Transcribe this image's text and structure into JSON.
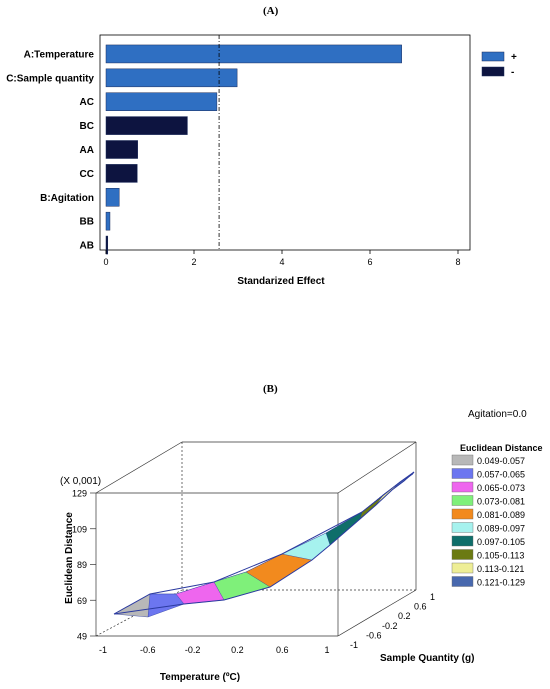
{
  "panel_a_label": "(A)",
  "panel_b_label": "(B)",
  "chart_data": [
    {
      "type": "bar",
      "orientation": "horizontal",
      "title": "",
      "xlabel": "Standarized Effect",
      "ylabel": "",
      "categories": [
        "A:Temperature",
        "C:Sample quantity",
        "AC",
        "BC",
        "AA",
        "CC",
        "B:Agitation",
        "BB",
        "AB"
      ],
      "values": [
        6.72,
        2.98,
        2.52,
        1.85,
        0.72,
        0.71,
        0.3,
        0.09,
        0.04
      ],
      "signs": [
        "+",
        "+",
        "+",
        "-",
        "-",
        "-",
        "+",
        "+",
        "-"
      ],
      "xlim": [
        0,
        8
      ],
      "xticks": [
        0,
        2,
        4,
        6,
        8
      ],
      "reference_line": 2.57,
      "legend": {
        "placement": "top-right",
        "entries": [
          {
            "label": "+",
            "color": "#2f6fc2"
          },
          {
            "label": "-",
            "color": "#0d1440"
          }
        ]
      },
      "colors": {
        "positive": "#2f6fc2",
        "negative": "#0d1440"
      }
    },
    {
      "type": "surface",
      "annotation": "Agitation=0.0",
      "zlabel": "Euclidean Distance",
      "zscale_label": "(X 0,001)",
      "zticks": [
        "129",
        "109",
        "89",
        "69",
        "49"
      ],
      "zlim": [
        49,
        129
      ],
      "xlabel": "Temperature (ºC)",
      "xticks": [
        "-1",
        "-0.6",
        "-0.2",
        "0.2",
        "0.6",
        "1"
      ],
      "ylabel": "Sample Quantity (g)",
      "yticks": [
        "-1",
        "-0.6",
        "-0.2",
        "0.2",
        "0.6",
        "1"
      ],
      "legend_title": "Euclidean Distance",
      "bands": [
        {
          "label": "0.049-0.057",
          "color": "#b8b8b8"
        },
        {
          "label": "0.057-0.065",
          "color": "#6c76f0"
        },
        {
          "label": "0.065-0.073",
          "color": "#ee66ee"
        },
        {
          "label": "0.073-0.081",
          "color": "#7ff07a"
        },
        {
          "label": "0.081-0.089",
          "color": "#f28a1e"
        },
        {
          "label": "0.089-0.097",
          "color": "#a6f2ee"
        },
        {
          "label": "0.097-0.105",
          "color": "#0f6e6a"
        },
        {
          "label": "0.105-0.113",
          "color": "#6b7a12"
        },
        {
          "label": "0.113-0.121",
          "color": "#eeee96"
        },
        {
          "label": "0.121-0.129",
          "color": "#4868ae"
        }
      ]
    }
  ]
}
